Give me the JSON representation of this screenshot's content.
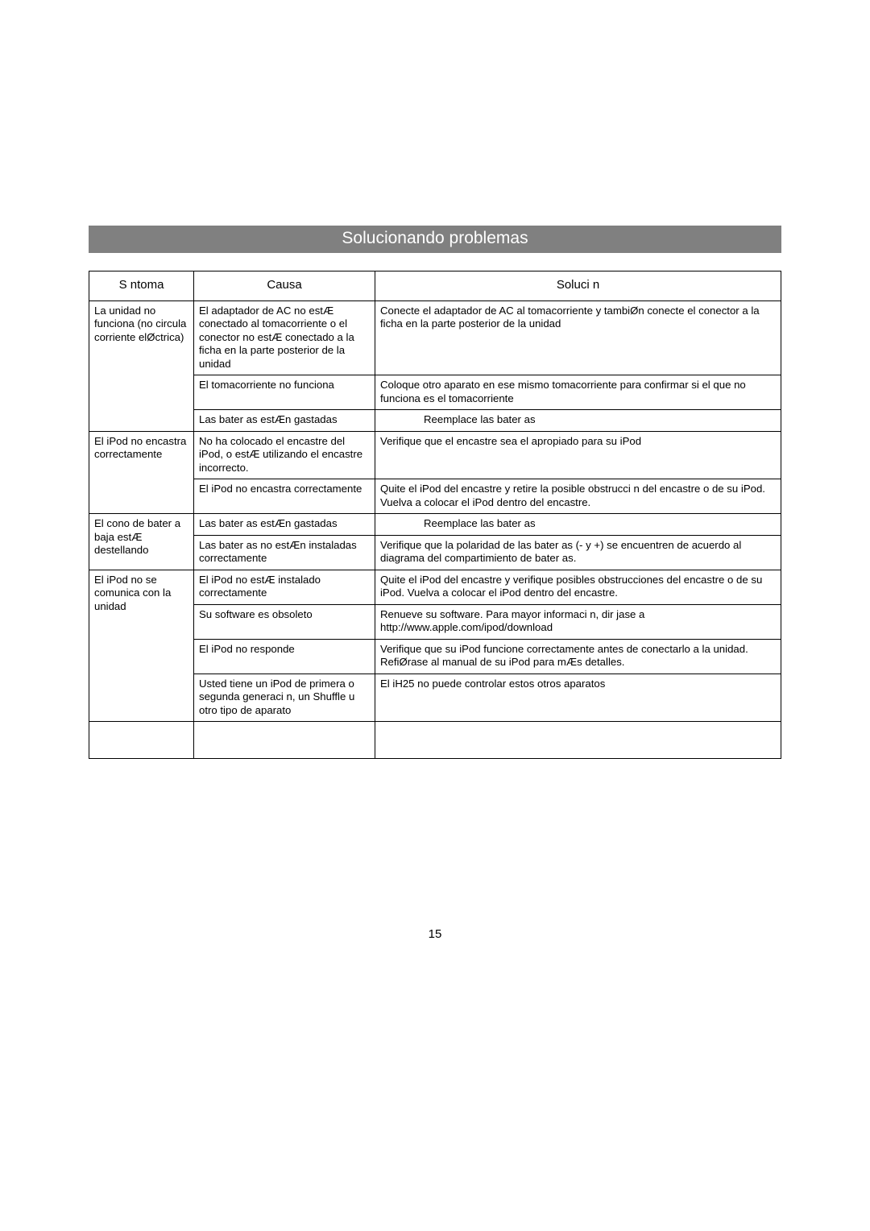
{
  "banner_title": "Solucionando problemas",
  "page_number": "15",
  "headers": {
    "symptom": "S ntoma",
    "cause": "Causa",
    "solution": "Soluci n"
  },
  "rows": [
    {
      "symptom": "La unidad no funciona (no circula corriente elØctrica)",
      "symptom_rowspan": 3,
      "cause": "El adaptador de AC no estÆ conectado al tomacorriente o el conector no estÆ conectado a la ficha en la parte posterior de la unidad",
      "solution": "Conecte el adaptador de AC  al tomacorriente y tambiØn conecte el conector a la ficha en la parte posterior de la unidad"
    },
    {
      "cause": "El tomacorriente no funciona",
      "solution": "Coloque otro aparato en ese mismo tomacorriente para confirmar si el que no funciona es el tomacorriente"
    },
    {
      "cause": "Las bater as estÆn gastadas",
      "solution": "Reemplace las bater as",
      "solution_indent": true
    },
    {
      "symptom": "El iPod no encastra correctamente",
      "symptom_rowspan": 2,
      "cause": "No ha colocado el encastre del iPod, o estÆ utilizando el encastre incorrecto.",
      "solution": "Verifique que el encastre sea el apropiado para su iPod"
    },
    {
      "cause": "El iPod no encastra correctamente",
      "solution": " Quite el iPod del encastre y retire la posible obstrucci n del encastre o de su iPod. Vuelva a colocar el iPod dentro del encastre."
    },
    {
      "symptom": "El  cono de bater a baja estÆ destellando",
      "symptom_rowspan": 2,
      "cause": "Las bater as estÆn gastadas",
      "solution": "Reemplace las bater as",
      "solution_indent": true
    },
    {
      "cause": "Las bater as no estÆn instaladas correctamente",
      "solution": "Verifique que la polaridad de las bater as (- y +) se encuentren de acuerdo al diagrama del compartimiento de bater as."
    },
    {
      "symptom": "El iPod no se comunica con la unidad",
      "symptom_rowspan": 4,
      "cause": "El iPod no estÆ instalado correctamente",
      "solution": "Quite el iPod del encastre y verifique posibles obstrucciones del encastre o de su iPod. Vuelva a colocar el iPod dentro del encastre."
    },
    {
      "cause": "Su software es obsoleto",
      "solution": " Renueve su software. Para mayor informaci n, dir jase a http://www.apple.com/ipod/download"
    },
    {
      "cause": "El iPod no responde",
      "solution": "Verifique que su iPod funcione correctamente antes de conectarlo a la unidad. RefiØrase al manual de su iPod para mÆs detalles."
    },
    {
      "cause": "Usted tiene un iPod de primera o segunda generaci n, un Shuffle u otro tipo de aparato",
      "solution": "El iH25 no puede controlar estos otros aparatos"
    }
  ]
}
